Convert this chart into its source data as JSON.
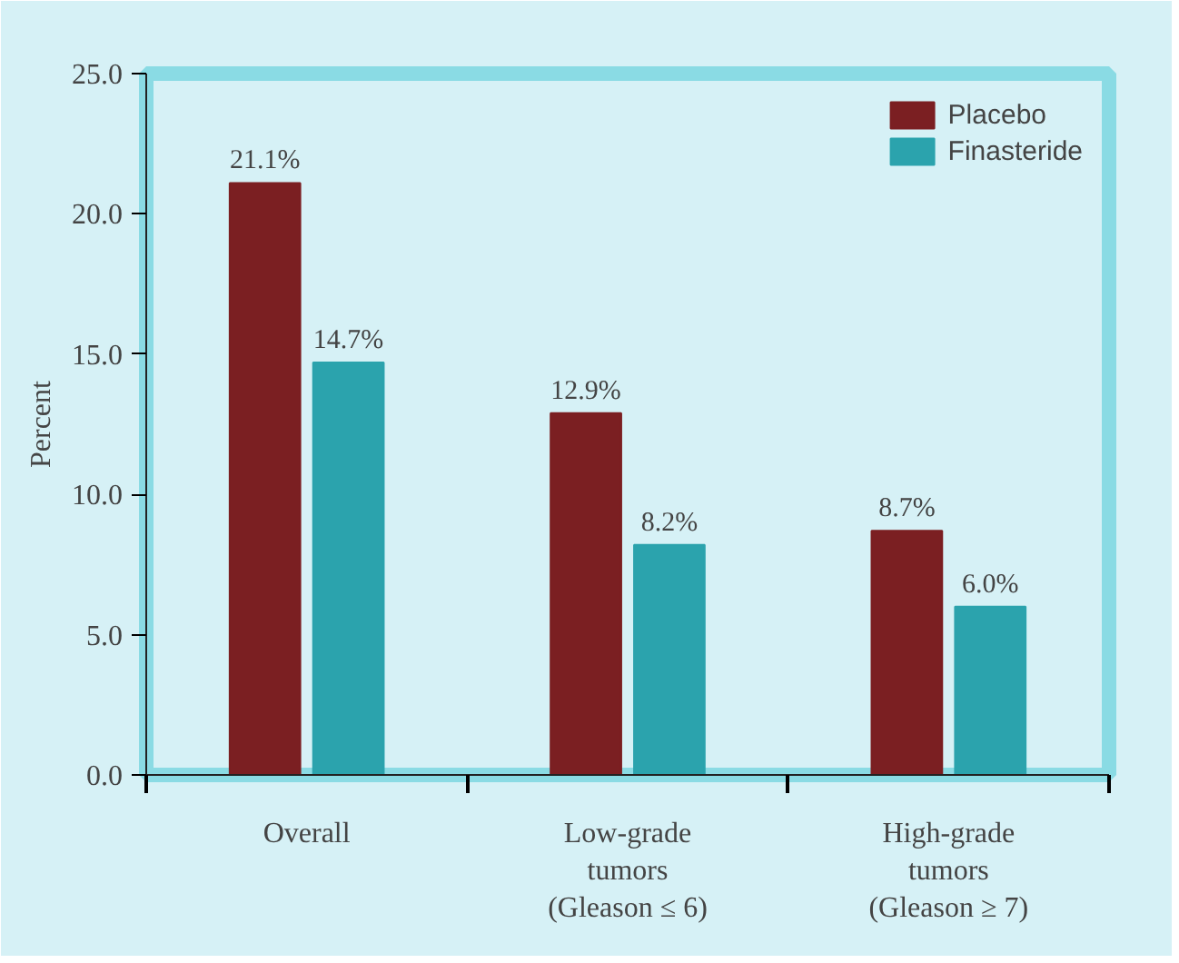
{
  "chart_data": {
    "type": "bar",
    "ylabel": "Percent",
    "categories": [
      "Overall",
      "Low-grade\ntumors\n(Gleason ≤ 6)",
      "High-grade\ntumors\n(Gleason ≥ 7)"
    ],
    "series": [
      {
        "name": "Placebo",
        "color": "#7b1f22",
        "values": [
          21.1,
          12.9,
          8.7
        ],
        "value_labels": [
          "21.1%",
          "12.9%",
          "8.7%"
        ]
      },
      {
        "name": "Finasteride",
        "color": "#2ba3ad",
        "values": [
          14.7,
          8.2,
          6.0
        ],
        "value_labels": [
          "14.7%",
          "8.2%",
          "6.0%"
        ]
      }
    ],
    "ylim": [
      0,
      25
    ],
    "yticks": [
      {
        "value": 0,
        "label": "0.0"
      },
      {
        "value": 5,
        "label": "5.0"
      },
      {
        "value": 10,
        "label": "10.0"
      },
      {
        "value": 15,
        "label": "15.0"
      },
      {
        "value": 20,
        "label": "20.0"
      },
      {
        "value": 25,
        "label": "25.0"
      }
    ],
    "grid": false,
    "legend": "top right"
  }
}
